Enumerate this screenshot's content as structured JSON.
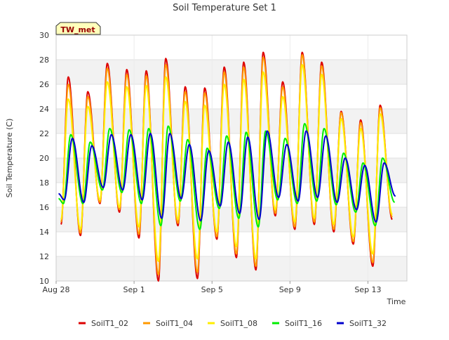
{
  "chart_data": {
    "type": "line",
    "title": "Soil Temperature Set 1",
    "xlabel": "Time",
    "ylabel": "Soil Temperature (C)",
    "badge": "TW_met",
    "ylim": [
      10,
      30
    ],
    "yticks": [
      10,
      12,
      14,
      16,
      18,
      20,
      22,
      24,
      26,
      28,
      30
    ],
    "xlim": [
      "2023-08-28",
      "2023-09-15"
    ],
    "xticks": [
      {
        "date": "2023-08-28",
        "label": "Aug 28"
      },
      {
        "date": "2023-09-01",
        "label": "Sep 1"
      },
      {
        "date": "2023-09-05",
        "label": "Sep 5"
      },
      {
        "date": "2023-09-09",
        "label": "Sep 9"
      },
      {
        "date": "2023-09-13",
        "label": "Sep 13"
      }
    ],
    "grid": true,
    "legend_position": "bottom",
    "series": [
      {
        "name": "SoilT1_02",
        "color": "#dd0000",
        "points": [
          [
            "2023-08-28 06:00",
            14.6
          ],
          [
            "2023-08-28 15:00",
            26.6
          ],
          [
            "2023-08-29 06:00",
            13.7
          ],
          [
            "2023-08-29 15:00",
            25.4
          ],
          [
            "2023-08-30 06:00",
            16.3
          ],
          [
            "2023-08-30 15:00",
            27.7
          ],
          [
            "2023-08-31 06:00",
            15.6
          ],
          [
            "2023-08-31 15:00",
            27.2
          ],
          [
            "2023-09-01 06:00",
            13.5
          ],
          [
            "2023-09-01 15:00",
            27.1
          ],
          [
            "2023-09-02 06:00",
            10.0
          ],
          [
            "2023-09-02 15:00",
            28.1
          ],
          [
            "2023-09-03 06:00",
            14.5
          ],
          [
            "2023-09-03 15:00",
            25.8
          ],
          [
            "2023-09-04 06:00",
            10.2
          ],
          [
            "2023-09-04 15:00",
            25.7
          ],
          [
            "2023-09-05 06:00",
            13.4
          ],
          [
            "2023-09-05 15:00",
            27.4
          ],
          [
            "2023-09-06 06:00",
            11.9
          ],
          [
            "2023-09-06 15:00",
            27.8
          ],
          [
            "2023-09-07 06:00",
            10.9
          ],
          [
            "2023-09-07 15:00",
            28.6
          ],
          [
            "2023-09-08 06:00",
            15.3
          ],
          [
            "2023-09-08 15:00",
            26.2
          ],
          [
            "2023-09-09 06:00",
            14.2
          ],
          [
            "2023-09-09 15:00",
            28.6
          ],
          [
            "2023-09-10 06:00",
            14.6
          ],
          [
            "2023-09-10 15:00",
            27.8
          ],
          [
            "2023-09-11 06:00",
            14.0
          ],
          [
            "2023-09-11 15:00",
            23.8
          ],
          [
            "2023-09-12 06:00",
            13.0
          ],
          [
            "2023-09-12 15:00",
            23.1
          ],
          [
            "2023-09-13 06:00",
            11.2
          ],
          [
            "2023-09-13 15:00",
            24.3
          ],
          [
            "2023-09-14 06:00",
            15.0
          ]
        ]
      },
      {
        "name": "SoilT1_04",
        "color": "#ff9900",
        "points": [
          [
            "2023-08-28 06:00",
            14.8
          ],
          [
            "2023-08-28 15:00",
            26.0
          ],
          [
            "2023-08-29 06:00",
            13.9
          ],
          [
            "2023-08-29 15:00",
            25.0
          ],
          [
            "2023-08-30 06:00",
            16.4
          ],
          [
            "2023-08-30 15:00",
            27.3
          ],
          [
            "2023-08-31 06:00",
            15.8
          ],
          [
            "2023-08-31 15:00",
            26.8
          ],
          [
            "2023-09-01 06:00",
            13.8
          ],
          [
            "2023-09-01 15:00",
            26.7
          ],
          [
            "2023-09-02 06:00",
            10.5
          ],
          [
            "2023-09-02 15:00",
            27.6
          ],
          [
            "2023-09-03 06:00",
            14.7
          ],
          [
            "2023-09-03 15:00",
            25.4
          ],
          [
            "2023-09-04 06:00",
            10.7
          ],
          [
            "2023-09-04 15:00",
            25.3
          ],
          [
            "2023-09-05 06:00",
            13.6
          ],
          [
            "2023-09-05 15:00",
            27.0
          ],
          [
            "2023-09-06 06:00",
            12.2
          ],
          [
            "2023-09-06 15:00",
            27.4
          ],
          [
            "2023-09-07 06:00",
            11.2
          ],
          [
            "2023-09-07 15:00",
            28.2
          ],
          [
            "2023-09-08 06:00",
            15.5
          ],
          [
            "2023-09-08 15:00",
            25.8
          ],
          [
            "2023-09-09 06:00",
            14.4
          ],
          [
            "2023-09-09 15:00",
            28.4
          ],
          [
            "2023-09-10 06:00",
            14.8
          ],
          [
            "2023-09-10 15:00",
            27.5
          ],
          [
            "2023-09-11 06:00",
            14.2
          ],
          [
            "2023-09-11 15:00",
            23.7
          ],
          [
            "2023-09-12 06:00",
            13.2
          ],
          [
            "2023-09-12 15:00",
            22.9
          ],
          [
            "2023-09-13 06:00",
            11.5
          ],
          [
            "2023-09-13 15:00",
            24.1
          ],
          [
            "2023-09-14 06:00",
            15.2
          ]
        ]
      },
      {
        "name": "SoilT1_08",
        "color": "#ffee00",
        "points": [
          [
            "2023-08-28 06:00",
            15.0
          ],
          [
            "2023-08-28 15:00",
            24.8
          ],
          [
            "2023-08-29 06:00",
            14.2
          ],
          [
            "2023-08-29 15:00",
            24.2
          ],
          [
            "2023-08-30 06:00",
            16.6
          ],
          [
            "2023-08-30 15:00",
            26.2
          ],
          [
            "2023-08-31 06:00",
            16.0
          ],
          [
            "2023-08-31 15:00",
            25.8
          ],
          [
            "2023-09-01 06:00",
            14.4
          ],
          [
            "2023-09-01 15:00",
            25.9
          ],
          [
            "2023-09-02 06:00",
            11.6
          ],
          [
            "2023-09-02 15:00",
            26.6
          ],
          [
            "2023-09-03 06:00",
            15.0
          ],
          [
            "2023-09-03 15:00",
            24.6
          ],
          [
            "2023-09-04 06:00",
            11.8
          ],
          [
            "2023-09-04 15:00",
            24.3
          ],
          [
            "2023-09-05 06:00",
            14.0
          ],
          [
            "2023-09-05 15:00",
            26.0
          ],
          [
            "2023-09-06 06:00",
            12.8
          ],
          [
            "2023-09-06 15:00",
            26.4
          ],
          [
            "2023-09-07 06:00",
            11.8
          ],
          [
            "2023-09-07 15:00",
            27.0
          ],
          [
            "2023-09-08 06:00",
            15.8
          ],
          [
            "2023-09-08 15:00",
            25.0
          ],
          [
            "2023-09-09 06:00",
            14.8
          ],
          [
            "2023-09-09 15:00",
            27.6
          ],
          [
            "2023-09-10 06:00",
            15.1
          ],
          [
            "2023-09-10 15:00",
            26.8
          ],
          [
            "2023-09-11 06:00",
            14.6
          ],
          [
            "2023-09-11 15:00",
            23.2
          ],
          [
            "2023-09-12 06:00",
            13.6
          ],
          [
            "2023-09-12 15:00",
            22.4
          ],
          [
            "2023-09-13 06:00",
            12.2
          ],
          [
            "2023-09-13 15:00",
            23.6
          ],
          [
            "2023-09-14 06:00",
            15.4
          ]
        ]
      },
      {
        "name": "SoilT1_16",
        "color": "#00ee00",
        "points": [
          [
            "2023-08-28 03:00",
            16.7
          ],
          [
            "2023-08-28 09:00",
            16.3
          ],
          [
            "2023-08-28 18:00",
            21.9
          ],
          [
            "2023-08-29 09:00",
            16.3
          ],
          [
            "2023-08-29 18:00",
            21.3
          ],
          [
            "2023-08-30 09:00",
            17.4
          ],
          [
            "2023-08-30 18:00",
            22.4
          ],
          [
            "2023-08-31 09:00",
            17.2
          ],
          [
            "2023-08-31 18:00",
            22.3
          ],
          [
            "2023-09-01 09:00",
            16.3
          ],
          [
            "2023-09-01 18:00",
            22.4
          ],
          [
            "2023-09-02 09:00",
            14.5
          ],
          [
            "2023-09-02 18:00",
            22.6
          ],
          [
            "2023-09-03 09:00",
            16.5
          ],
          [
            "2023-09-03 18:00",
            21.5
          ],
          [
            "2023-09-04 09:00",
            14.2
          ],
          [
            "2023-09-04 18:00",
            20.8
          ],
          [
            "2023-09-05 09:00",
            15.9
          ],
          [
            "2023-09-05 18:00",
            21.8
          ],
          [
            "2023-09-06 09:00",
            15.1
          ],
          [
            "2023-09-06 18:00",
            22.1
          ],
          [
            "2023-09-07 09:00",
            14.4
          ],
          [
            "2023-09-07 18:00",
            22.2
          ],
          [
            "2023-09-08 09:00",
            16.6
          ],
          [
            "2023-09-08 18:00",
            21.6
          ],
          [
            "2023-09-09 09:00",
            16.3
          ],
          [
            "2023-09-09 18:00",
            22.8
          ],
          [
            "2023-09-10 09:00",
            16.5
          ],
          [
            "2023-09-10 18:00",
            22.4
          ],
          [
            "2023-09-11 09:00",
            16.2
          ],
          [
            "2023-09-11 18:00",
            20.4
          ],
          [
            "2023-09-12 09:00",
            15.6
          ],
          [
            "2023-09-12 18:00",
            19.6
          ],
          [
            "2023-09-13 09:00",
            14.5
          ],
          [
            "2023-09-13 18:00",
            20.0
          ],
          [
            "2023-09-14 09:00",
            16.4
          ]
        ]
      },
      {
        "name": "SoilT1_32",
        "color": "#0000cc",
        "points": [
          [
            "2023-08-28 03:00",
            17.1
          ],
          [
            "2023-08-28 10:00",
            16.6
          ],
          [
            "2023-08-28 20:00",
            21.6
          ],
          [
            "2023-08-29 10:00",
            16.4
          ],
          [
            "2023-08-29 20:00",
            21.0
          ],
          [
            "2023-08-30 10:00",
            17.6
          ],
          [
            "2023-08-30 20:00",
            21.9
          ],
          [
            "2023-08-31 10:00",
            17.4
          ],
          [
            "2023-08-31 20:00",
            21.9
          ],
          [
            "2023-09-01 10:00",
            16.6
          ],
          [
            "2023-09-01 20:00",
            22.0
          ],
          [
            "2023-09-02 10:00",
            15.1
          ],
          [
            "2023-09-02 20:00",
            22.0
          ],
          [
            "2023-09-03 10:00",
            16.7
          ],
          [
            "2023-09-03 20:00",
            21.1
          ],
          [
            "2023-09-04 10:00",
            14.9
          ],
          [
            "2023-09-04 20:00",
            20.6
          ],
          [
            "2023-09-05 10:00",
            16.1
          ],
          [
            "2023-09-05 20:00",
            21.3
          ],
          [
            "2023-09-06 10:00",
            15.5
          ],
          [
            "2023-09-06 20:00",
            21.7
          ],
          [
            "2023-09-07 10:00",
            15.0
          ],
          [
            "2023-09-07 20:00",
            22.2
          ],
          [
            "2023-09-08 10:00",
            16.8
          ],
          [
            "2023-09-08 20:00",
            21.1
          ],
          [
            "2023-09-09 10:00",
            16.5
          ],
          [
            "2023-09-09 20:00",
            22.2
          ],
          [
            "2023-09-10 10:00",
            16.8
          ],
          [
            "2023-09-10 20:00",
            21.8
          ],
          [
            "2023-09-11 10:00",
            16.4
          ],
          [
            "2023-09-11 20:00",
            20.0
          ],
          [
            "2023-09-12 10:00",
            15.8
          ],
          [
            "2023-09-12 20:00",
            19.4
          ],
          [
            "2023-09-13 10:00",
            14.8
          ],
          [
            "2023-09-13 20:00",
            19.6
          ],
          [
            "2023-09-14 10:00",
            16.9
          ]
        ]
      }
    ]
  }
}
